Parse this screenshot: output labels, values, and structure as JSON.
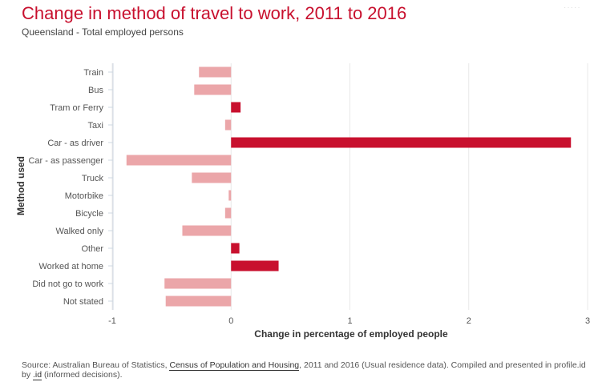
{
  "header": {
    "title": "Change in method of travel to work, 2011 to 2016",
    "subtitle": "Queensland - Total employed persons"
  },
  "footer": {
    "source_prefix": "Source: Australian Bureau of Statistics, ",
    "source_link": "Census of Population and Housing",
    "source_middle": ", 2011 and 2016 (Usual residence data). Compiled and presented in profile.id by ",
    "id_link": ".id",
    "source_suffix": " (informed decisions)."
  },
  "colors": {
    "positive": "#c8102e",
    "negative": "#eba6a9",
    "grid": "#e8e8e8",
    "axis_text": "#555555"
  },
  "chart_data": {
    "type": "bar",
    "orientation": "horizontal",
    "title": "Change in method of travel to work, 2011 to 2016",
    "subtitle": "Queensland - Total employed persons",
    "xlabel": "Change in percentage of employed people",
    "ylabel": "Method used",
    "xlim": [
      -1,
      3
    ],
    "xticks": [
      -1,
      0,
      1,
      2,
      3
    ],
    "grid": true,
    "categories": [
      "Train",
      "Bus",
      "Tram or Ferry",
      "Taxi",
      "Car - as driver",
      "Car - as passenger",
      "Truck",
      "Motorbike",
      "Bicycle",
      "Walked only",
      "Other",
      "Worked at home",
      "Did not go to work",
      "Not stated"
    ],
    "values": [
      -0.27,
      -0.31,
      0.08,
      -0.05,
      2.86,
      -0.88,
      -0.33,
      -0.02,
      -0.05,
      -0.41,
      0.07,
      0.4,
      -0.56,
      -0.55
    ]
  }
}
